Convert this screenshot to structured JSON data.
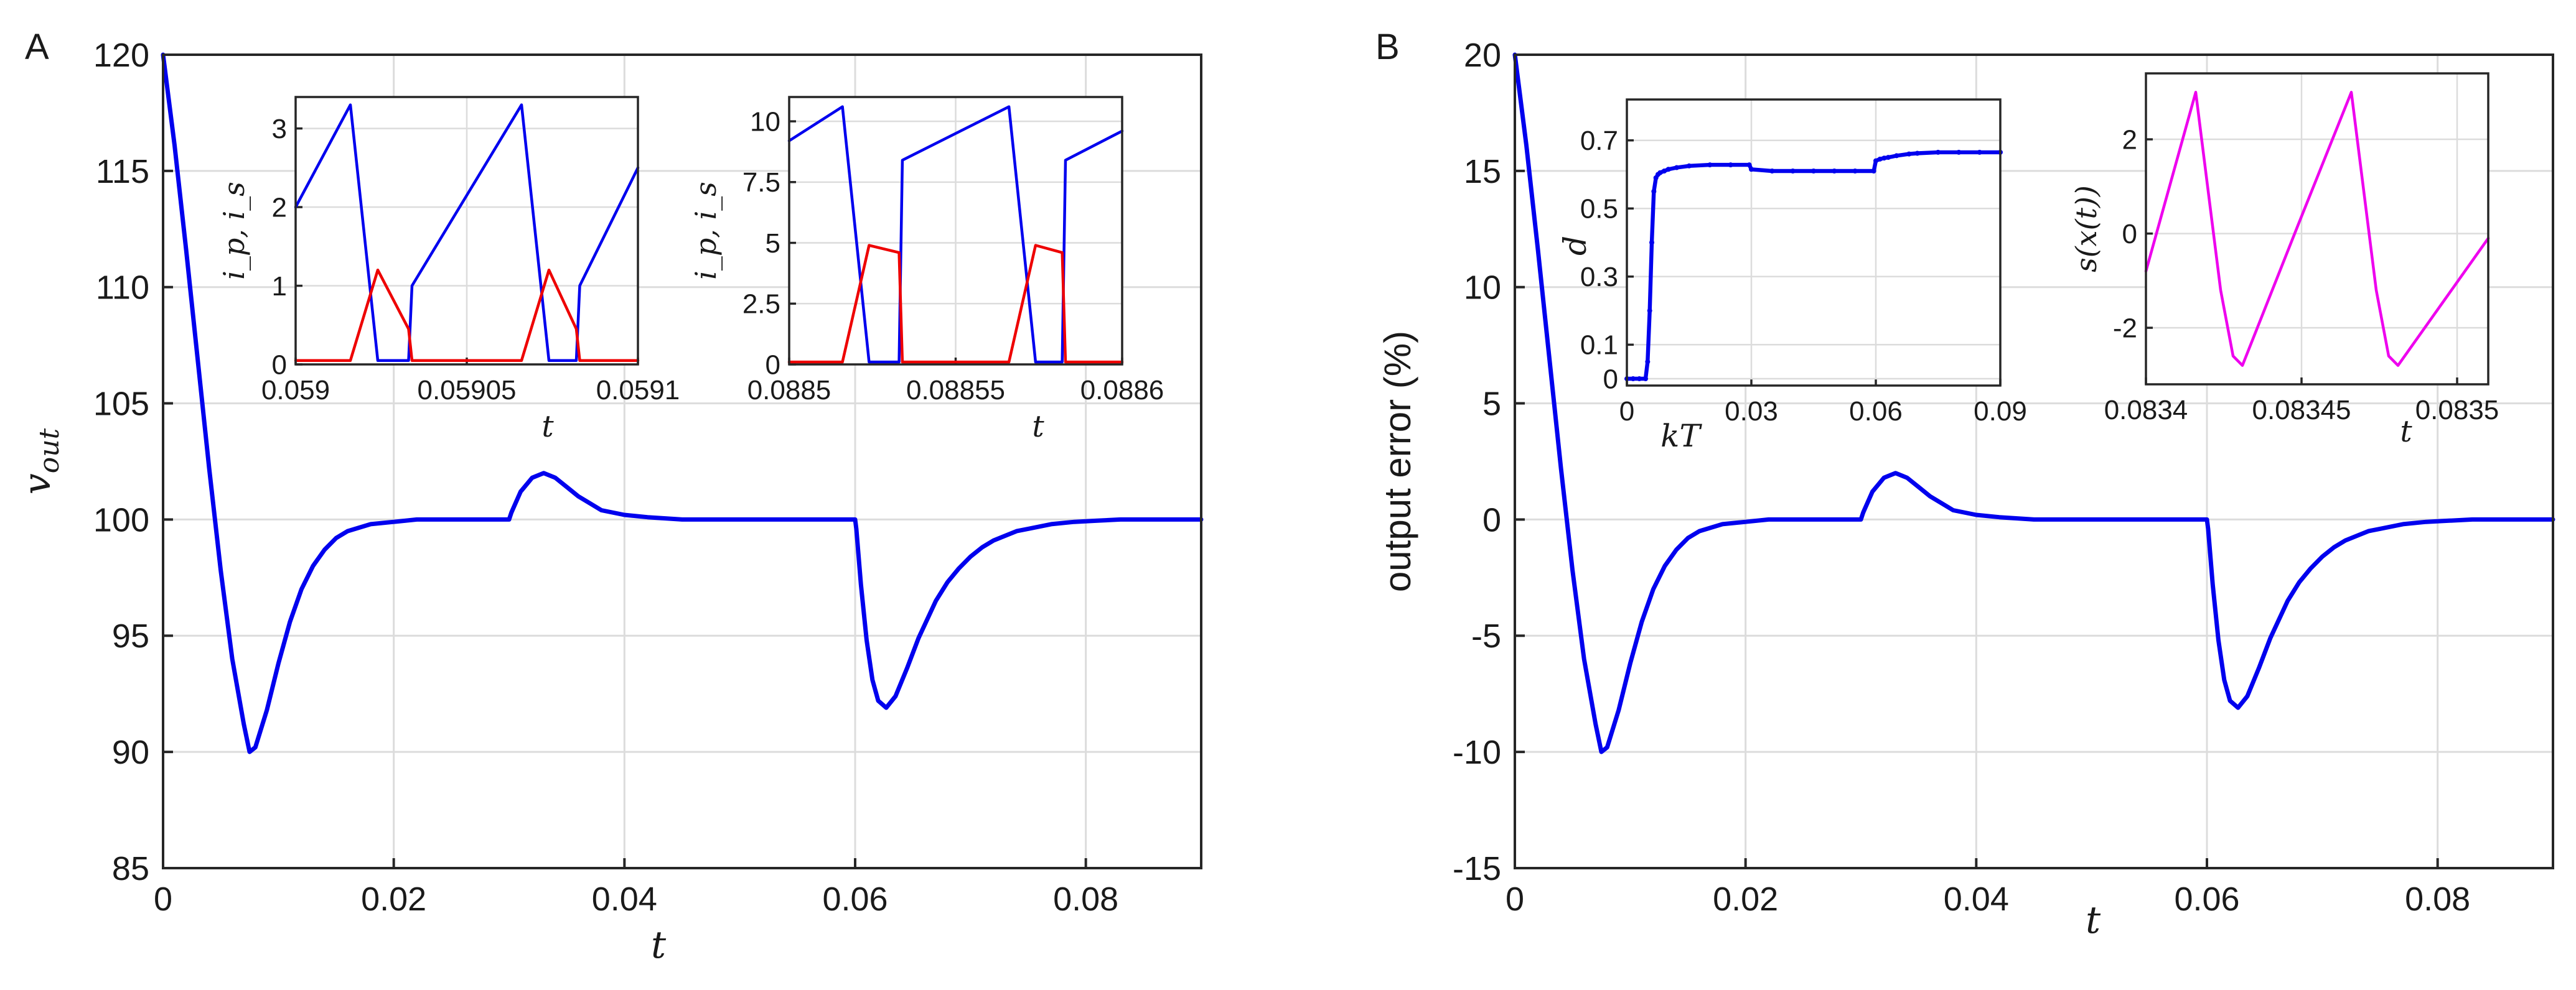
{
  "panels": [
    {
      "id": "A",
      "label": "A",
      "chart_data": {
        "type": "line",
        "title": "",
        "xlabel": "t",
        "ylabel_base": "v",
        "ylabel_sub": "out",
        "xlim": [
          0,
          0.09
        ],
        "ylim": [
          85,
          120
        ],
        "xticks": [
          0,
          0.02,
          0.04,
          0.06,
          0.08
        ],
        "xticklabels": [
          "0",
          "0.02",
          "0.04",
          "0.06",
          "0.08"
        ],
        "yticks": [
          85,
          90,
          95,
          100,
          105,
          110,
          115,
          120
        ],
        "yticklabels": [
          "85",
          "90",
          "95",
          "100",
          "105",
          "110",
          "115",
          "120"
        ],
        "grid": true,
        "series": [
          {
            "name": "v_out",
            "color": "#0000ee",
            "x": [
              0,
              0.001,
              0.002,
              0.003,
              0.004,
              0.005,
              0.006,
              0.007,
              0.0075,
              0.008,
              0.009,
              0.01,
              0.011,
              0.012,
              0.013,
              0.014,
              0.015,
              0.016,
              0.018,
              0.02,
              0.022,
              0.025,
              0.028,
              0.03,
              0.0302,
              0.031,
              0.032,
              0.033,
              0.034,
              0.035,
              0.036,
              0.037,
              0.038,
              0.04,
              0.042,
              0.045,
              0.048,
              0.05,
              0.055,
              0.06,
              0.0601,
              0.0605,
              0.061,
              0.0615,
              0.062,
              0.0627,
              0.0635,
              0.0645,
              0.0655,
              0.067,
              0.068,
              0.069,
              0.07,
              0.071,
              0.072,
              0.073,
              0.074,
              0.075,
              0.077,
              0.079,
              0.081,
              0.083,
              0.085,
              0.087,
              0.09
            ],
            "y": [
              120,
              116.1,
              111.6,
              106.9,
              102.2,
              97.8,
              94.0,
              91.2,
              90.0,
              90.2,
              91.8,
              93.8,
              95.6,
              97.0,
              98.0,
              98.7,
              99.2,
              99.5,
              99.8,
              99.9,
              100,
              100,
              100,
              100,
              100.3,
              101.2,
              101.8,
              102.0,
              101.8,
              101.4,
              101.0,
              100.7,
              100.4,
              100.2,
              100.1,
              100,
              100,
              100,
              100,
              100,
              99.6,
              97.2,
              94.8,
              93.1,
              92.2,
              91.9,
              92.4,
              93.6,
              94.9,
              96.5,
              97.3,
              97.9,
              98.4,
              98.8,
              99.1,
              99.3,
              99.5,
              99.6,
              99.8,
              99.9,
              99.95,
              100,
              100,
              100,
              100
            ]
          }
        ]
      },
      "insets": [
        {
          "chart_data": {
            "type": "line",
            "xlabel": "t",
            "ylabel": "i_p, i_s",
            "xlim": [
              0.059,
              0.0591
            ],
            "ylim": [
              0,
              3.4
            ],
            "xticks": [
              0.059,
              0.05905,
              0.0591
            ],
            "xticklabels": [
              "0.059",
              "0.05905",
              "0.0591"
            ],
            "yticks": [
              0,
              1,
              2,
              3
            ],
            "yticklabels": [
              "0",
              "1",
              "2",
              "3"
            ],
            "grid": true,
            "series": [
              {
                "name": "i_p",
                "color": "#0000ee",
                "x": [
                  0.059,
                  0.059016,
                  0.059024,
                  0.059025,
                  0.059033,
                  0.059034,
                  0.059066,
                  0.059074,
                  0.059075,
                  0.059082,
                  0.059083,
                  0.0591
                ],
                "y": [
                  2.0,
                  3.3,
                  0.05,
                  0.05,
                  0.05,
                  1.0,
                  3.3,
                  0.05,
                  0.05,
                  0.05,
                  1.0,
                  2.5
                ]
              },
              {
                "name": "i_s",
                "color": "#ee0000",
                "x": [
                  0.059,
                  0.059016,
                  0.059024,
                  0.059033,
                  0.059034,
                  0.059066,
                  0.059074,
                  0.059082,
                  0.059083,
                  0.0591
                ],
                "y": [
                  0.05,
                  0.05,
                  1.2,
                  0.45,
                  0.05,
                  0.05,
                  1.2,
                  0.45,
                  0.05,
                  0.05
                ]
              }
            ]
          }
        },
        {
          "chart_data": {
            "type": "line",
            "xlabel": "t",
            "ylabel": "i_p, i_s",
            "xlim": [
              0.0885,
              0.0886
            ],
            "ylim": [
              0,
              11
            ],
            "xticks": [
              0.0885,
              0.08855,
              0.0886
            ],
            "xticklabels": [
              "0.0885",
              "0.08855",
              "0.0886"
            ],
            "yticks": [
              0,
              2.5,
              5,
              7.5,
              10
            ],
            "yticklabels": [
              "0",
              "2.5",
              "5",
              "7.5",
              "10"
            ],
            "grid": true,
            "series": [
              {
                "name": "i_p",
                "color": "#0000ee",
                "x": [
                  0.0885,
                  0.088516,
                  0.088524,
                  0.088525,
                  0.088533,
                  0.088534,
                  0.088566,
                  0.088574,
                  0.088575,
                  0.088582,
                  0.088583,
                  0.0886
                ],
                "y": [
                  9.2,
                  10.6,
                  0.1,
                  0.1,
                  0.1,
                  8.4,
                  10.6,
                  0.1,
                  0.1,
                  0.1,
                  8.4,
                  9.6
                ]
              },
              {
                "name": "i_s",
                "color": "#ee0000",
                "x": [
                  0.0885,
                  0.088516,
                  0.088524,
                  0.088533,
                  0.088534,
                  0.088566,
                  0.088574,
                  0.088582,
                  0.088583,
                  0.0886
                ],
                "y": [
                  0.1,
                  0.1,
                  4.9,
                  4.6,
                  0.1,
                  0.1,
                  4.9,
                  4.6,
                  0.1,
                  0.1
                ]
              }
            ]
          }
        }
      ]
    },
    {
      "id": "B",
      "label": "B",
      "chart_data": {
        "type": "line",
        "title": "",
        "xlabel": "t",
        "ylabel": "output error (%)",
        "xlim": [
          0,
          0.09
        ],
        "ylim": [
          -15,
          20
        ],
        "xticks": [
          0,
          0.02,
          0.04,
          0.06,
          0.08
        ],
        "xticklabels": [
          "0",
          "0.02",
          "0.04",
          "0.06",
          "0.08"
        ],
        "yticks": [
          -15,
          -10,
          -5,
          0,
          5,
          10,
          15,
          20
        ],
        "yticklabels": [
          "-15",
          "-10",
          "-5",
          "0",
          "5",
          "10",
          "15",
          "20"
        ],
        "grid": true,
        "series": [
          {
            "name": "output error",
            "color": "#0000ee",
            "x": [
              0,
              0.001,
              0.002,
              0.003,
              0.004,
              0.005,
              0.006,
              0.007,
              0.0075,
              0.008,
              0.009,
              0.01,
              0.011,
              0.012,
              0.013,
              0.014,
              0.015,
              0.016,
              0.018,
              0.02,
              0.022,
              0.025,
              0.028,
              0.03,
              0.0302,
              0.031,
              0.032,
              0.033,
              0.034,
              0.035,
              0.036,
              0.037,
              0.038,
              0.04,
              0.042,
              0.045,
              0.048,
              0.05,
              0.055,
              0.06,
              0.0601,
              0.0605,
              0.061,
              0.0615,
              0.062,
              0.0627,
              0.0635,
              0.0645,
              0.0655,
              0.067,
              0.068,
              0.069,
              0.07,
              0.071,
              0.072,
              0.073,
              0.074,
              0.075,
              0.077,
              0.079,
              0.081,
              0.083,
              0.085,
              0.087,
              0.09
            ],
            "y": [
              20,
              16.1,
              11.6,
              6.9,
              2.2,
              -2.2,
              -6.0,
              -8.8,
              -10.0,
              -9.8,
              -8.2,
              -6.2,
              -4.4,
              -3.0,
              -2.0,
              -1.3,
              -0.8,
              -0.5,
              -0.2,
              -0.1,
              0,
              0,
              0,
              0,
              0.3,
              1.2,
              1.8,
              2.0,
              1.8,
              1.4,
              1.0,
              0.7,
              0.4,
              0.2,
              0.1,
              0,
              0,
              0,
              0,
              0,
              -0.4,
              -2.8,
              -5.2,
              -6.9,
              -7.8,
              -8.1,
              -7.6,
              -6.4,
              -5.1,
              -3.5,
              -2.7,
              -2.1,
              -1.6,
              -1.2,
              -0.9,
              -0.7,
              -0.5,
              -0.4,
              -0.2,
              -0.1,
              -0.05,
              0,
              0,
              0,
              0
            ]
          }
        ]
      },
      "insets": [
        {
          "chart_data": {
            "type": "scatter",
            "xlabel": "kT",
            "ylabel": "d",
            "xlim": [
              0,
              0.09
            ],
            "ylim": [
              -0.02,
              0.82
            ],
            "xticks": [
              0,
              0.03,
              0.06,
              0.09
            ],
            "xticklabels": [
              "0",
              "0.03",
              "0.06",
              "0.09"
            ],
            "yticks": [
              0,
              0.1,
              0.3,
              0.5,
              0.7
            ],
            "yticklabels": [
              "0",
              "0.1",
              "0.3",
              "0.5",
              "0.7"
            ],
            "grid": true,
            "series": [
              {
                "name": "d",
                "color": "#0000ee",
                "x": [
                  0,
                  0.0015,
                  0.003,
                  0.0045,
                  0.005,
                  0.0055,
                  0.006,
                  0.0065,
                  0.007,
                  0.0075,
                  0.008,
                  0.009,
                  0.01,
                  0.012,
                  0.015,
                  0.02,
                  0.025,
                  0.0295,
                  0.03,
                  0.035,
                  0.04,
                  0.045,
                  0.05,
                  0.055,
                  0.0595,
                  0.06,
                  0.061,
                  0.062,
                  0.063,
                  0.065,
                  0.068,
                  0.07,
                  0.075,
                  0.08,
                  0.085,
                  0.09
                ],
                "y": [
                  0,
                  0,
                  0,
                  0,
                  0.05,
                  0.2,
                  0.4,
                  0.55,
                  0.59,
                  0.6,
                  0.605,
                  0.61,
                  0.615,
                  0.62,
                  0.625,
                  0.628,
                  0.628,
                  0.628,
                  0.615,
                  0.61,
                  0.61,
                  0.61,
                  0.61,
                  0.61,
                  0.61,
                  0.64,
                  0.645,
                  0.648,
                  0.65,
                  0.655,
                  0.66,
                  0.662,
                  0.665,
                  0.665,
                  0.665,
                  0.665
                ]
              }
            ]
          }
        },
        {
          "chart_data": {
            "type": "line",
            "xlabel": "t",
            "ylabel": "s(x(t))",
            "xlim": [
              0.0834,
              0.08351
            ],
            "ylim": [
              -3.2,
              3.4
            ],
            "xticks": [
              0.0834,
              0.08345,
              0.0835
            ],
            "xticklabels": [
              "0.0834",
              "0.08345",
              "0.0835"
            ],
            "yticks": [
              -2,
              0,
              2
            ],
            "yticklabels": [
              "-2",
              "0",
              "2"
            ],
            "grid": true,
            "series": [
              {
                "name": "s(x(t))",
                "color": "#ee00ee",
                "x": [
                  0.0834,
                  0.083416,
                  0.083424,
                  0.083428,
                  0.083431,
                  0.083449,
                  0.083466,
                  0.083474,
                  0.083478,
                  0.083481,
                  0.08351
                ],
                "y": [
                  -0.8,
                  3.0,
                  -1.2,
                  -2.6,
                  -2.8,
                  0.2,
                  3.0,
                  -1.2,
                  -2.6,
                  -2.8,
                  -0.1
                ]
              }
            ]
          }
        }
      ]
    }
  ]
}
